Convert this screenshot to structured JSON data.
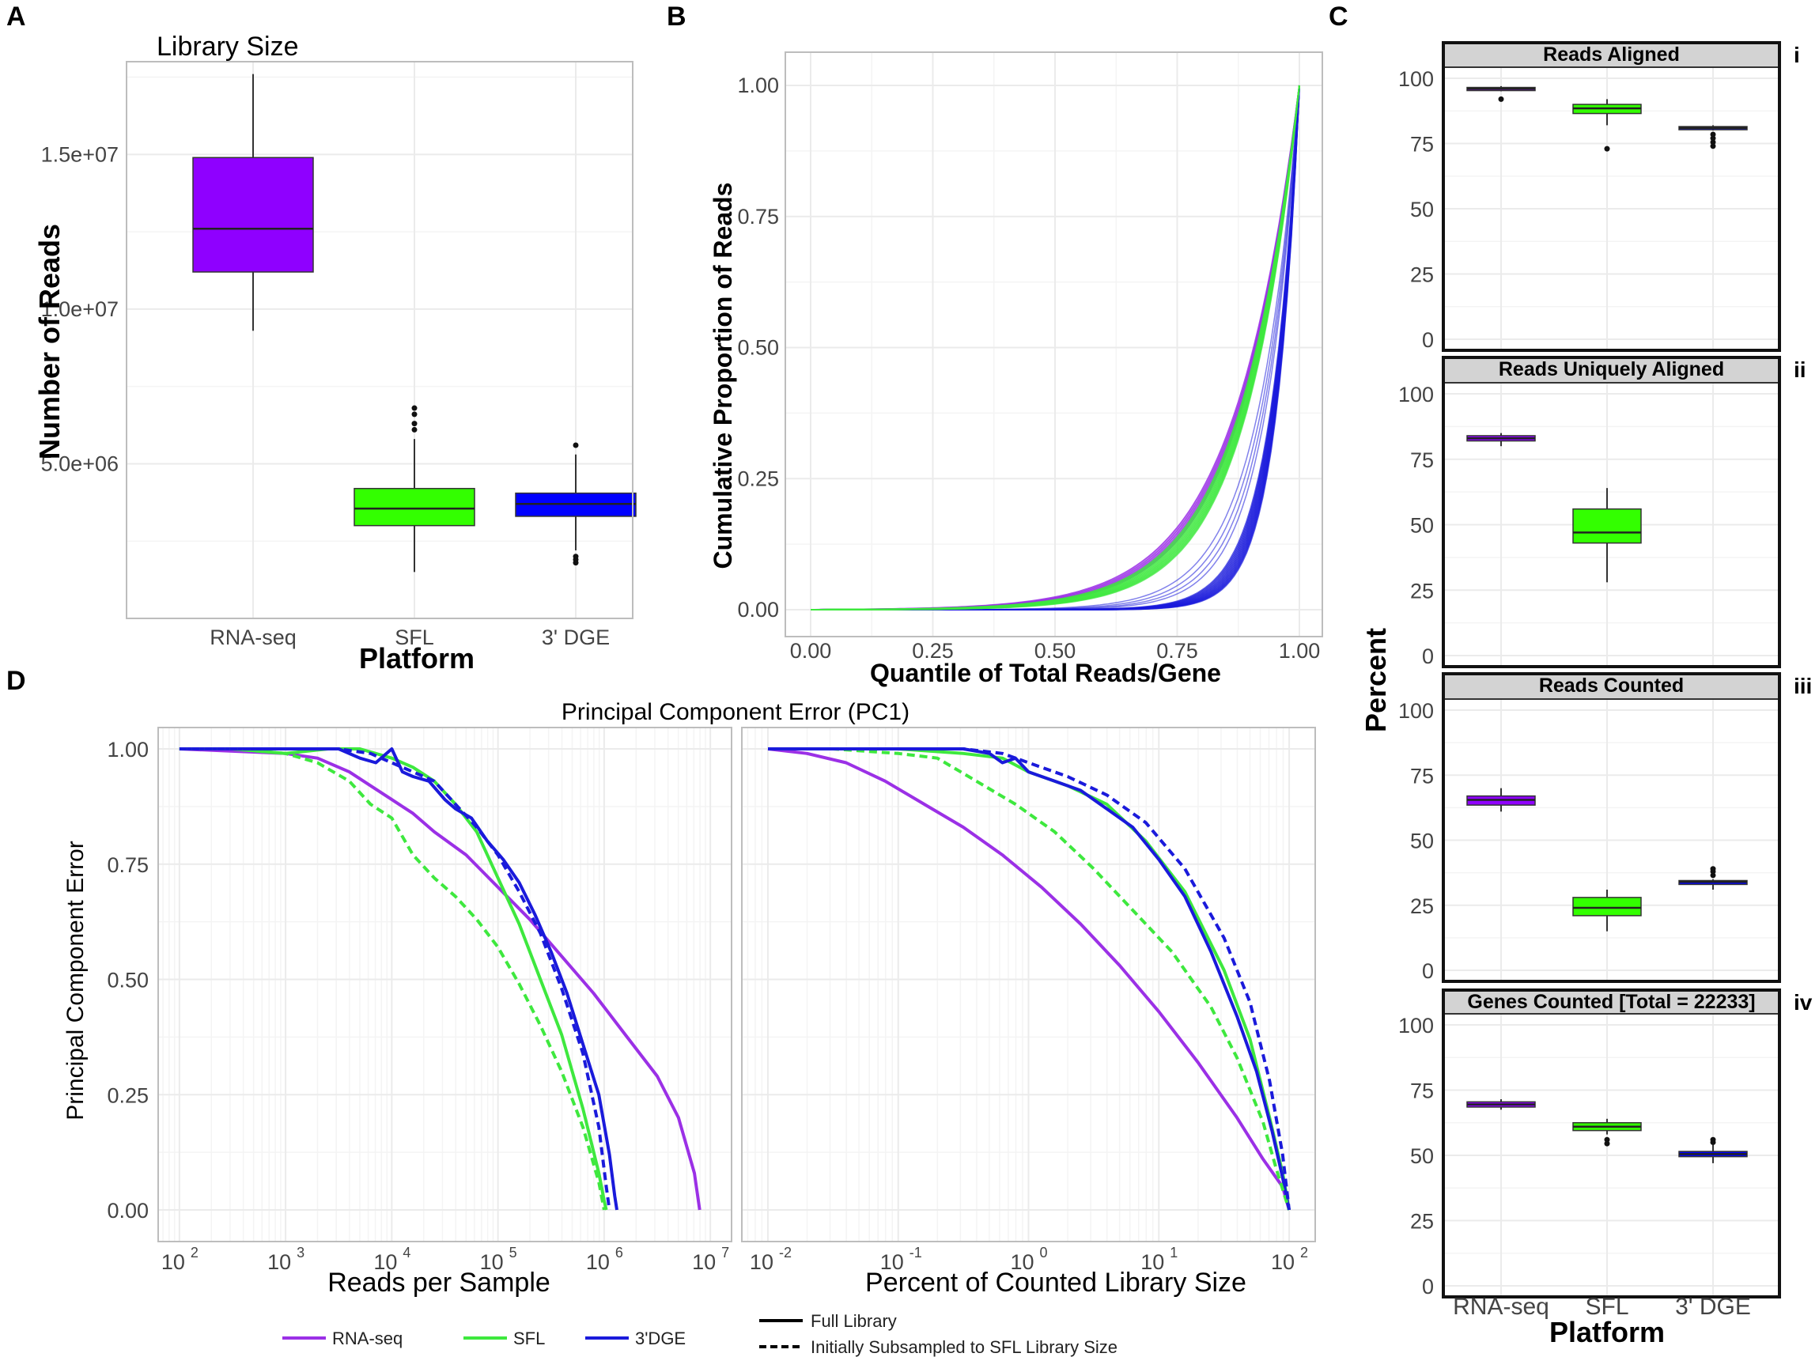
{
  "panel_labels": {
    "A": "A",
    "B": "B",
    "C": "C",
    "D": "D"
  },
  "colors": {
    "rna": "#8f00ff",
    "sfl": "#33ff00",
    "dge": "#0000ff",
    "rna_line": "#9b30e6",
    "sfl_line": "#3ee83e",
    "dge_line": "#1a1adb",
    "dge_dark": "#1a1a7a",
    "rna_dark": "#6a1a9a"
  },
  "chart_data": [
    {
      "id": "A",
      "type": "box",
      "title": "Library Size",
      "xlabel": "Platform",
      "ylabel": "Number of Reads",
      "ylim": [
        0,
        18000000
      ],
      "yticks": [
        5000000,
        10000000,
        15000000
      ],
      "ytick_labels": [
        "5.0e+06",
        "1.0e+07",
        "1.5e+07"
      ],
      "categories": [
        "RNA-seq",
        "SFL",
        "3' DGE"
      ],
      "boxes": [
        {
          "q1": 11200000,
          "median": 12600000,
          "q3": 14900000,
          "lo": 9300000,
          "hi": 17600000,
          "outliers": []
        },
        {
          "q1": 3000000,
          "median": 3550000,
          "q3": 4200000,
          "lo": 1500000,
          "hi": 5800000,
          "outliers": [
            6100000,
            6300000,
            6600000,
            6800000
          ]
        },
        {
          "q1": 3300000,
          "median": 3700000,
          "q3": 4050000,
          "lo": 2200000,
          "hi": 5300000,
          "outliers": [
            1800000,
            1900000,
            2000000,
            5600000
          ]
        }
      ]
    },
    {
      "id": "B",
      "type": "line",
      "xlabel": "Quantile of Total Reads/Gene",
      "ylabel": "Cumulative Proportion of Reads",
      "xlim": [
        0,
        1
      ],
      "ylim": [
        0,
        1
      ],
      "xticks": [
        0,
        0.25,
        0.5,
        0.75,
        1
      ],
      "xtick_labels": [
        "0.00",
        "0.25",
        "0.50",
        "0.75",
        "1.00"
      ],
      "yticks": [
        0,
        0.25,
        0.5,
        0.75,
        1
      ],
      "ytick_labels": [
        "0.00",
        "0.25",
        "0.50",
        "0.75",
        "1.00"
      ],
      "series": [
        {
          "name": "RNA-seq",
          "count": 6,
          "exp_range": [
            7.4,
            8.1
          ]
        },
        {
          "name": "SFL",
          "count": 12,
          "exp_range": [
            7.9,
            9.0
          ]
        },
        {
          "name": "3' DGE",
          "count": 4,
          "exp_range": [
            11.5,
            14.0
          ]
        },
        {
          "name": "3' DGE",
          "count": 14,
          "exp_range": [
            16.5,
            20.5
          ]
        }
      ]
    },
    {
      "id": "C",
      "type": "box",
      "xlabel": "Platform",
      "ylabel": "Percent",
      "ylim": [
        0,
        100
      ],
      "yticks": [
        0,
        25,
        50,
        75,
        100
      ],
      "ytick_labels": [
        "0",
        "25",
        "50",
        "75",
        "100"
      ],
      "categories": [
        "RNA-seq",
        "SFL",
        "3' DGE"
      ],
      "facets": [
        {
          "strip": "Reads Aligned",
          "tag": "i",
          "boxes": [
            {
              "q1": 95.5,
              "median": 96,
              "q3": 96.5,
              "lo": 95,
              "hi": 97,
              "outliers": [
                92
              ]
            },
            {
              "q1": 86.5,
              "median": 88.5,
              "q3": 90,
              "lo": 82,
              "hi": 92,
              "outliers": [
                73
              ]
            },
            {
              "q1": 80.5,
              "median": 81,
              "q3": 81.5,
              "lo": 80,
              "hi": 82,
              "outliers": [
                74,
                75.5,
                77,
                78.5
              ]
            }
          ]
        },
        {
          "strip": "Reads Uniquely Aligned",
          "tag": "ii",
          "boxes": [
            {
              "q1": 82,
              "median": 83,
              "q3": 84,
              "lo": 80,
              "hi": 85,
              "outliers": []
            },
            {
              "q1": 43,
              "median": 47,
              "q3": 56,
              "lo": 28,
              "hi": 64,
              "outliers": []
            },
            null
          ]
        },
        {
          "strip": "Reads Counted",
          "tag": "iii",
          "boxes": [
            {
              "q1": 63.5,
              "median": 65.5,
              "q3": 67,
              "lo": 61,
              "hi": 70,
              "outliers": []
            },
            {
              "q1": 21,
              "median": 24,
              "q3": 28,
              "lo": 15,
              "hi": 31,
              "outliers": []
            },
            {
              "q1": 33,
              "median": 34,
              "q3": 34.5,
              "lo": 31,
              "hi": 35,
              "outliers": [
                36.5,
                38,
                39
              ]
            }
          ]
        },
        {
          "strip": "Genes Counted [Total = 22233]",
          "tag": "iv",
          "boxes": [
            {
              "q1": 68.5,
              "median": 69.5,
              "q3": 70.5,
              "lo": 67.5,
              "hi": 71.5,
              "outliers": []
            },
            {
              "q1": 59.5,
              "median": 61,
              "q3": 62.5,
              "lo": 58,
              "hi": 64,
              "outliers": [
                54.5,
                56
              ]
            },
            {
              "q1": 49.5,
              "median": 50.5,
              "q3": 51.5,
              "lo": 47,
              "hi": 54,
              "outliers": [
                55,
                56
              ]
            }
          ]
        }
      ]
    },
    {
      "id": "D",
      "type": "line",
      "title": "Principal Component Error (PC1)",
      "ylabel": "Principal Component Error",
      "ylim": [
        0,
        1.05
      ],
      "yticks": [
        0,
        0.25,
        0.5,
        0.75,
        1
      ],
      "ytick_labels": [
        "0.00",
        "0.25",
        "0.50",
        "0.75",
        "1.00"
      ],
      "facets": [
        {
          "xlabel": "Reads per Sample",
          "xscale": "log10",
          "xlim": [
            1.8,
            7.2
          ],
          "xticks": [
            2,
            3,
            4,
            5,
            6,
            7
          ],
          "xtick_labels": [
            "10",
            "10",
            "10",
            "10",
            "10",
            "10"
          ],
          "xtick_exps": [
            "2",
            "3",
            "4",
            "5",
            "6",
            "7"
          ],
          "series": [
            {
              "name": "RNA-seq",
              "style": "solid",
              "x": [
                2,
                2.5,
                3,
                3.3,
                3.6,
                3.8,
                4,
                4.2,
                4.4,
                4.7,
                5,
                5.3,
                5.6,
                5.9,
                6.2,
                6.5,
                6.7,
                6.85,
                6.9
              ],
              "y": [
                1,
                0.995,
                0.99,
                0.98,
                0.95,
                0.92,
                0.89,
                0.86,
                0.82,
                0.77,
                0.7,
                0.63,
                0.55,
                0.47,
                0.38,
                0.29,
                0.2,
                0.08,
                0
              ]
            },
            {
              "name": "SFL",
              "style": "solid",
              "x": [
                2,
                2.5,
                3,
                3.4,
                3.7,
                4,
                4.2,
                4.4,
                4.6,
                4.8,
                5,
                5.2,
                5.4,
                5.6,
                5.8,
                5.95,
                6,
                6.02
              ],
              "y": [
                1,
                1,
                0.99,
                1,
                1,
                0.98,
                0.96,
                0.93,
                0.88,
                0.82,
                0.72,
                0.62,
                0.5,
                0.38,
                0.22,
                0.08,
                0.02,
                0
              ]
            },
            {
              "name": "3' DGE",
              "style": "solid",
              "x": [
                2,
                2.5,
                3,
                3.5,
                3.7,
                3.85,
                4,
                4.1,
                4.2,
                4.35,
                4.5,
                4.6,
                4.75,
                4.9,
                5.05,
                5.2,
                5.35,
                5.5,
                5.65,
                5.8,
                5.95,
                6.05,
                6.1,
                6.12
              ],
              "y": [
                1,
                1,
                1,
                1,
                0.98,
                0.97,
                1,
                0.95,
                0.94,
                0.93,
                0.89,
                0.87,
                0.85,
                0.8,
                0.76,
                0.71,
                0.64,
                0.56,
                0.47,
                0.36,
                0.25,
                0.12,
                0.03,
                0
              ]
            },
            {
              "name": "SFL",
              "style": "dashed",
              "x": [
                2,
                2.5,
                3,
                3.3,
                3.6,
                3.8,
                4,
                4.2,
                4.4,
                4.6,
                4.8,
                5,
                5.2,
                5.4,
                5.6,
                5.8,
                5.95,
                6
              ],
              "y": [
                1,
                1,
                0.99,
                0.97,
                0.93,
                0.88,
                0.85,
                0.77,
                0.72,
                0.68,
                0.63,
                0.57,
                0.49,
                0.4,
                0.3,
                0.18,
                0.06,
                0
              ]
            },
            {
              "name": "3' DGE",
              "style": "dashed",
              "x": [
                2,
                2.5,
                3,
                3.5,
                3.8,
                4,
                4.2,
                4.4,
                4.6,
                4.8,
                5,
                5.2,
                5.4,
                5.6,
                5.8,
                5.95,
                6.02,
                6.05
              ],
              "y": [
                1,
                1,
                1,
                1,
                0.99,
                0.97,
                0.95,
                0.93,
                0.88,
                0.83,
                0.77,
                0.69,
                0.6,
                0.48,
                0.34,
                0.18,
                0.05,
                0
              ]
            }
          ]
        },
        {
          "xlabel": "Percent of Counted Library Size",
          "xscale": "log10",
          "xlim": [
            -2.2,
            2.2
          ],
          "xticks": [
            -2,
            -1,
            0,
            1,
            2
          ],
          "xtick_labels": [
            "10",
            "10",
            "10",
            "10",
            "10"
          ],
          "xtick_exps": [
            "-2",
            "-1",
            "0",
            "1",
            "2"
          ],
          "series": [
            {
              "name": "RNA-seq",
              "style": "solid",
              "x": [
                -2,
                -1.7,
                -1.4,
                -1.1,
                -0.8,
                -0.5,
                -0.2,
                0.1,
                0.4,
                0.7,
                1,
                1.3,
                1.6,
                1.8,
                1.95,
                2
              ],
              "y": [
                1,
                0.99,
                0.97,
                0.93,
                0.88,
                0.83,
                0.77,
                0.7,
                0.62,
                0.53,
                0.43,
                0.32,
                0.2,
                0.11,
                0.05,
                0
              ]
            },
            {
              "name": "SFL",
              "style": "solid",
              "x": [
                -2,
                -1.5,
                -1,
                -0.5,
                -0.2,
                0,
                0.3,
                0.6,
                0.9,
                1.2,
                1.5,
                1.7,
                1.85,
                1.95,
                2
              ],
              "y": [
                1,
                1,
                1,
                0.99,
                0.98,
                0.95,
                0.92,
                0.88,
                0.8,
                0.69,
                0.52,
                0.37,
                0.2,
                0.08,
                0
              ]
            },
            {
              "name": "3' DGE",
              "style": "solid",
              "x": [
                -2,
                -1.5,
                -1,
                -0.5,
                -0.3,
                -0.2,
                -0.1,
                0,
                0.2,
                0.4,
                0.6,
                0.8,
                1,
                1.2,
                1.4,
                1.6,
                1.75,
                1.87,
                1.95,
                2
              ],
              "y": [
                1,
                1,
                1,
                1,
                0.99,
                0.97,
                0.98,
                0.95,
                0.93,
                0.91,
                0.87,
                0.83,
                0.76,
                0.68,
                0.56,
                0.42,
                0.3,
                0.17,
                0.07,
                0
              ]
            },
            {
              "name": "SFL",
              "style": "dashed",
              "x": [
                -2,
                -1.5,
                -1,
                -0.7,
                -0.4,
                -0.1,
                0.2,
                0.5,
                0.8,
                1.1,
                1.4,
                1.6,
                1.8,
                1.9,
                2
              ],
              "y": [
                1,
                1,
                0.99,
                0.98,
                0.93,
                0.88,
                0.82,
                0.74,
                0.65,
                0.56,
                0.44,
                0.33,
                0.19,
                0.09,
                0
              ]
            },
            {
              "name": "3' DGE",
              "style": "dashed",
              "x": [
                -2,
                -1.5,
                -1,
                -0.5,
                -0.2,
                0,
                0.3,
                0.6,
                0.9,
                1.2,
                1.5,
                1.7,
                1.85,
                1.95,
                2
              ],
              "y": [
                1,
                1,
                1,
                1,
                0.99,
                0.97,
                0.94,
                0.9,
                0.84,
                0.74,
                0.59,
                0.45,
                0.28,
                0.12,
                0
              ]
            }
          ]
        }
      ]
    }
  ],
  "legend_d": {
    "colors": [
      "RNA-seq",
      "SFL",
      "3'DGE"
    ],
    "linetypes": [
      "Full Library",
      "Initially Subsampled to SFL Library Size"
    ]
  }
}
